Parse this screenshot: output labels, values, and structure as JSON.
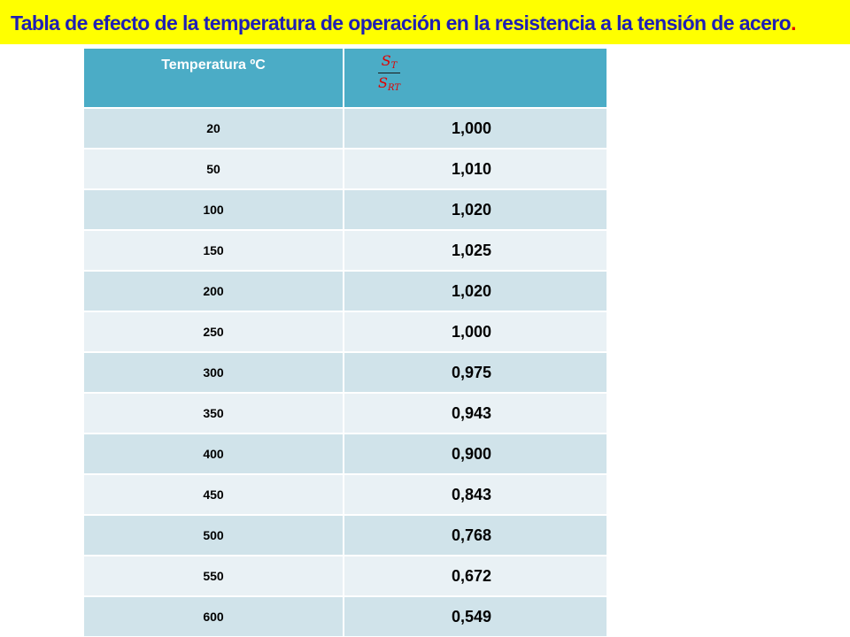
{
  "title": {
    "text": "Tabla de efecto de la temperatura de operación en la resistencia a la tensión de acero",
    "trailing_period": "."
  },
  "table": {
    "header": {
      "temperature": "Temperatura ºC",
      "ratio_numerator": "S",
      "ratio_numerator_sub": "T",
      "ratio_denominator": "S",
      "ratio_denominator_sub": "RT"
    },
    "rows": [
      {
        "temperature": "20",
        "ratio": "1,000"
      },
      {
        "temperature": "50",
        "ratio": "1,010"
      },
      {
        "temperature": "100",
        "ratio": "1,020"
      },
      {
        "temperature": "150",
        "ratio": "1,025"
      },
      {
        "temperature": "200",
        "ratio": "1,020"
      },
      {
        "temperature": "250",
        "ratio": "1,000"
      },
      {
        "temperature": "300",
        "ratio": "0,975"
      },
      {
        "temperature": "350",
        "ratio": "0,943"
      },
      {
        "temperature": "400",
        "ratio": "0,900"
      },
      {
        "temperature": "450",
        "ratio": "0,843"
      },
      {
        "temperature": "500",
        "ratio": "0,768"
      },
      {
        "temperature": "550",
        "ratio": "0,672"
      },
      {
        "temperature": "600",
        "ratio": "0,549"
      }
    ]
  },
  "colors": {
    "title_background": "#ffff00",
    "title_text": "#1f1fb4",
    "title_period": "#e00000",
    "header_background": "#4bacc6",
    "header_text": "#ffffff",
    "ratio_symbol": "#e00000",
    "row_odd": "#d0e3ea",
    "row_even": "#e9f1f5"
  }
}
